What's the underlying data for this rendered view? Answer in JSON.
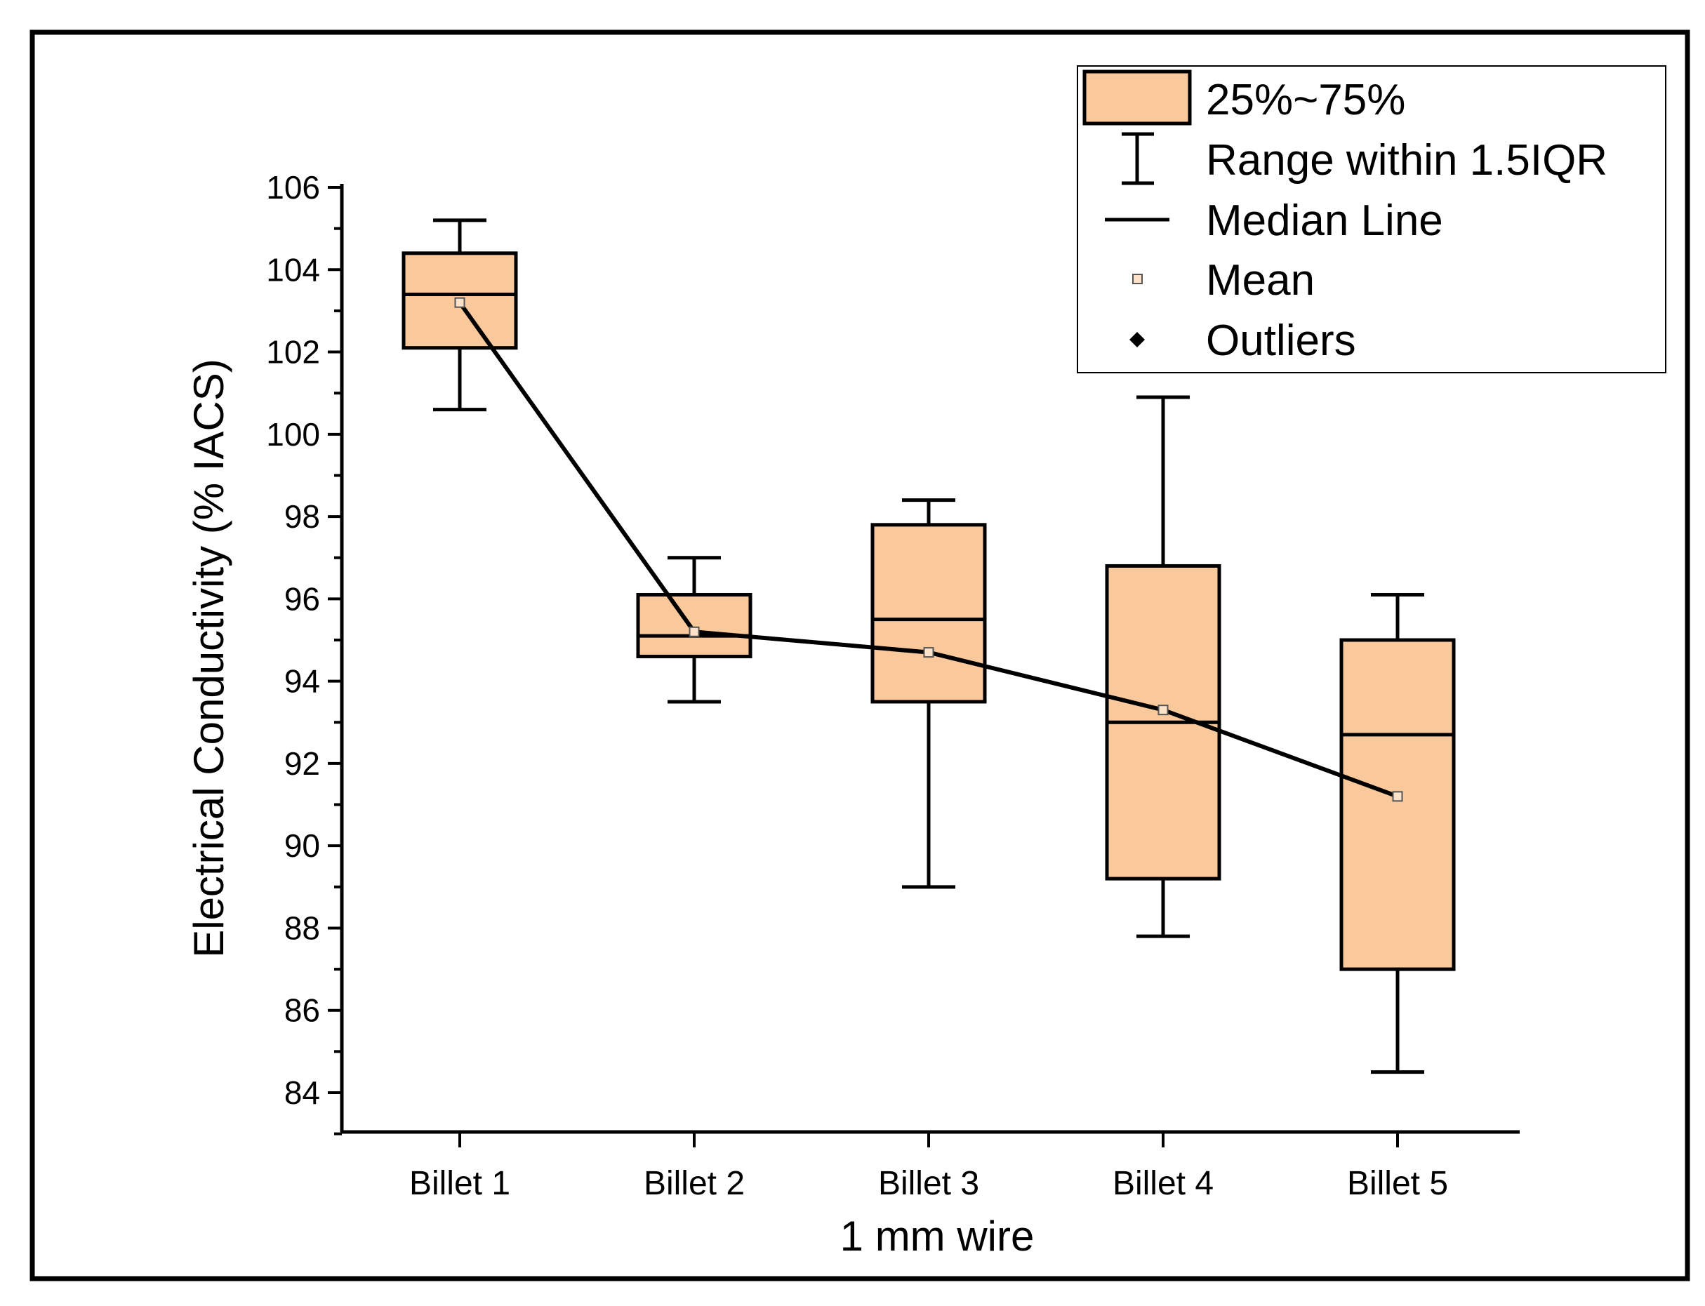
{
  "chart_data": {
    "type": "box",
    "xlabel": "1 mm wire",
    "ylabel": "Electrical Conductivity (% IACS)",
    "categories": [
      "Billet 1",
      "Billet 2",
      "Billet 3",
      "Billet 4",
      "Billet 5"
    ],
    "ylim": [
      83,
      106
    ],
    "yticks": [
      84,
      86,
      88,
      90,
      92,
      94,
      96,
      98,
      100,
      102,
      104,
      106
    ],
    "ytick_labels": [
      "84",
      "86",
      "88",
      "90",
      "92",
      "94",
      "96",
      "98",
      "100",
      "102",
      "104",
      "106"
    ],
    "boxes": [
      {
        "name": "Billet 1",
        "whisker_low": 100.6,
        "q1": 102.1,
        "median": 103.4,
        "q3": 104.4,
        "whisker_high": 105.2,
        "mean": 103.2
      },
      {
        "name": "Billet 2",
        "whisker_low": 93.5,
        "q1": 94.6,
        "median": 95.1,
        "q3": 96.1,
        "whisker_high": 97.0,
        "mean": 95.2
      },
      {
        "name": "Billet 3",
        "whisker_low": 89.0,
        "q1": 93.5,
        "median": 95.5,
        "q3": 97.8,
        "whisker_high": 98.4,
        "mean": 94.7
      },
      {
        "name": "Billet 4",
        "whisker_low": 87.8,
        "q1": 89.2,
        "median": 93.0,
        "q3": 96.8,
        "whisker_high": 100.9,
        "mean": 93.3
      },
      {
        "name": "Billet 5",
        "whisker_low": 84.5,
        "q1": 87.0,
        "median": 92.7,
        "q3": 95.0,
        "whisker_high": 96.1,
        "mean": 91.2
      }
    ],
    "mean_line": true,
    "legend": {
      "position": "top-right",
      "entries": [
        {
          "key": "box",
          "label": "25%~75%"
        },
        {
          "key": "whisker",
          "label": "Range within 1.5IQR"
        },
        {
          "key": "median",
          "label": "Median Line"
        },
        {
          "key": "mean",
          "label": "Mean"
        },
        {
          "key": "outlier",
          "label": "Outliers"
        }
      ]
    },
    "colors": {
      "box_fill": "#F9C89B",
      "stroke": "#000000",
      "mean_fill": "#FCE2C8",
      "background": "#FFFFFF"
    }
  }
}
